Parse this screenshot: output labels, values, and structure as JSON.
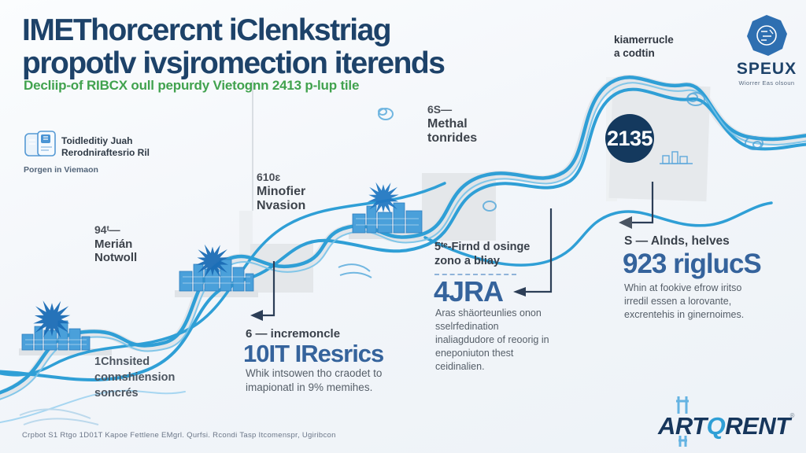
{
  "header": {
    "title_line1": "IMEThorcercnt iClenkstriag",
    "title_line2": "propotlv ivsjromection iterends",
    "subtitle": "Decliip-of RIBCX oull pepurdy Vietognn 2413 p-lup tile"
  },
  "top_right": {
    "note_line1": "kiamerrucle",
    "note_line2": "a codtin",
    "logo_text": "SPEUX",
    "logo_tagline": "Wiorrer Eas olsoun"
  },
  "legend": {
    "line1": "Toidleditiy Juah",
    "line2": "Rerodniraftesrio Ril",
    "caption": "Porgen in Viemaon"
  },
  "milestones": [
    {
      "value": "94ᵗ—",
      "label_line1": "Merián",
      "label_line2": "Notwoll"
    },
    {
      "value": "610ɛ",
      "label_line1": "Minofier",
      "label_line2": "Nvasion"
    },
    {
      "value": "6S—",
      "label_line1": "Methal",
      "label_line2": "tonrides"
    },
    {
      "value": "2135"
    }
  ],
  "callouts": {
    "mid": {
      "kicker_line1": "5ᵗᵉ-Firnd d osinge",
      "kicker_line2": "zono a bliay",
      "headline": "4JRA",
      "body": "Aras shäorteunlies onon sselrfedination inaliagdudore of reoorig in eneponiuton thest ceidinalien."
    },
    "right": {
      "kicker": "S — Alnds, helves",
      "headline": "923 riglucS",
      "body": "Whin at fookive efrow iritso irredil essen a lorovante, excrentehis in ginernoimes."
    },
    "bottom": {
      "kicker": "6 — incremoncle",
      "headline": "10IT IResrics",
      "body": "Whik intsowen tho craodet to imapionatl in 9% memihes."
    },
    "left_note": {
      "line1": "1Chnsited",
      "line2": "connshiension",
      "line3": "soncrés"
    }
  },
  "footer": {
    "fineprint": "Crpbot S1 Rtgo 1D01T Kapoe Fettlene EMgrl. Qurfsi. Rcondi Tasp Itcomenspr, Ugiribcon",
    "logo_prefix": "ART",
    "logo_accent": "Q",
    "logo_suffix": "RENT"
  },
  "colors": {
    "accent_blue": "#2f9fd6",
    "navy_title": "#1d4269",
    "steel_headline": "#35639c",
    "green_subtitle": "#41a24e",
    "circle_navy": "#14395e",
    "ribbon_shadow": "#dfe3e8"
  }
}
